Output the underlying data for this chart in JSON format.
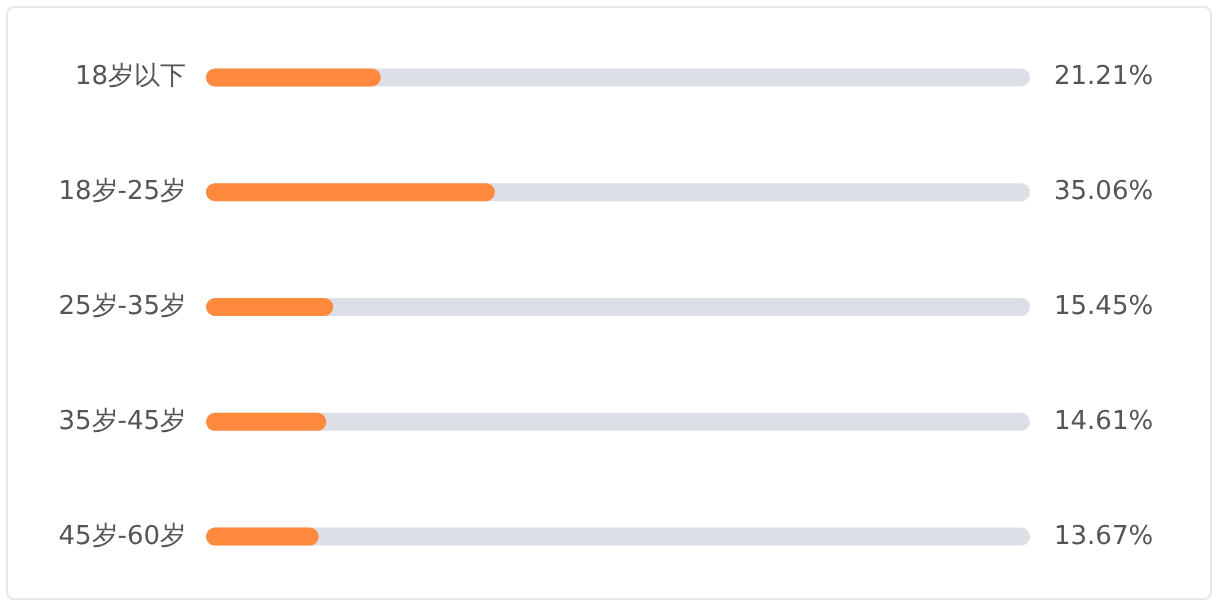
{
  "chart_data": {
    "type": "bar",
    "orientation": "horizontal",
    "categories": [
      "18岁以下",
      "18岁-25岁",
      "25岁-35岁",
      "35岁-45岁",
      "45岁-60岁"
    ],
    "values": [
      21.21,
      35.06,
      15.45,
      14.61,
      13.67
    ],
    "value_labels": [
      "21.21%",
      "35.06%",
      "15.45%",
      "14.61%",
      "13.67%"
    ],
    "color": "#ff8a3d",
    "xlim": [
      0,
      100
    ],
    "tick_labels": false,
    "grid": false
  }
}
